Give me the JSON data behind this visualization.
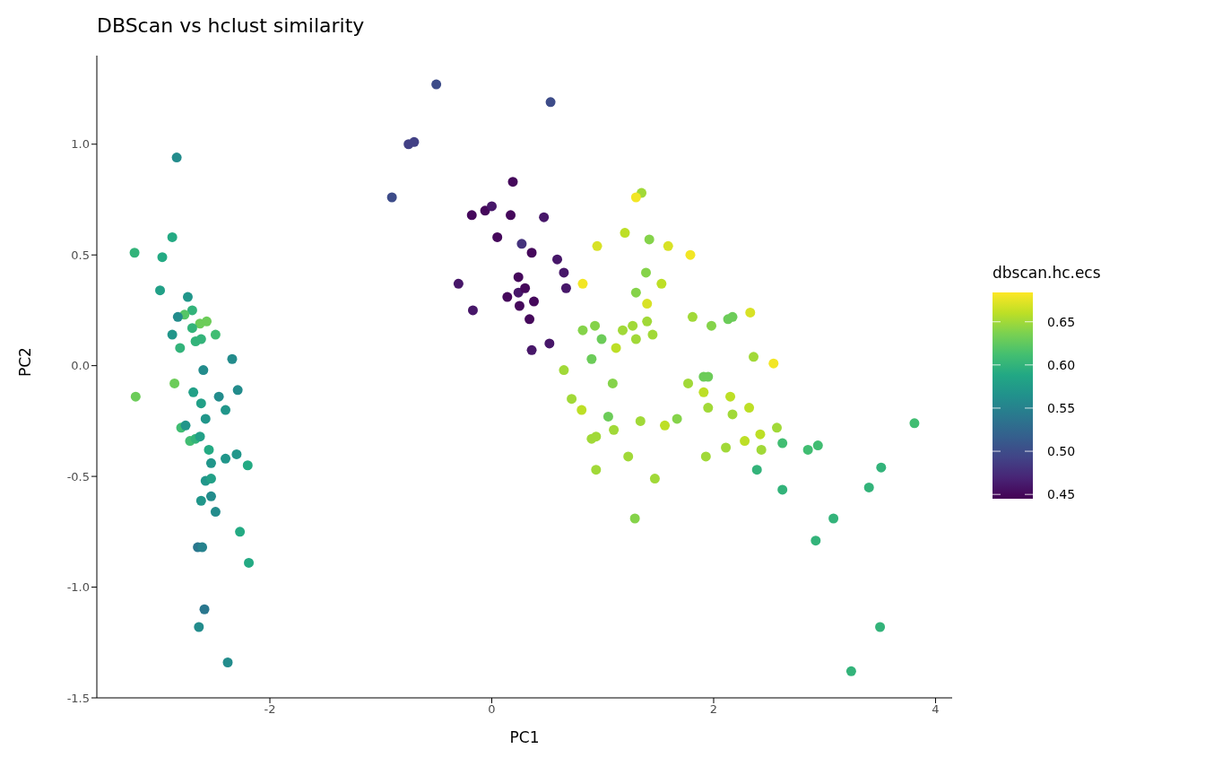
{
  "chart_data": {
    "type": "scatter",
    "title": "DBScan vs hclust similarity",
    "xlabel": "PC1",
    "ylabel": "PC2",
    "legend_title": "dbscan.hc.ecs",
    "marker": "circle",
    "xlim": [
      -3.56,
      4.15
    ],
    "xticks": [
      -2,
      0,
      2,
      4
    ],
    "ylim": [
      -1.5,
      1.4
    ],
    "yticks": [
      -1.5,
      {
        "value": -1,
        "label": "-1.0"
      },
      -0.5,
      {
        "value": 0,
        "label": "0.0"
      },
      0.5,
      {
        "value": 1,
        "label": "1.0"
      }
    ],
    "clim": [
      0.445,
      0.684
    ],
    "cticks": [
      0.45,
      {
        "value": 0.5,
        "label": "0.50"
      },
      0.55,
      {
        "value": 0.6,
        "label": "0.60"
      },
      0.65
    ],
    "x": [
      -2.84,
      -2.88,
      -3.22,
      -2.97,
      -2.99,
      -2.74,
      -2.7,
      -2.77,
      -2.83,
      -2.63,
      -2.57,
      -2.7,
      -2.88,
      -2.49,
      -2.67,
      -2.62,
      -2.81,
      -2.34,
      -2.6,
      -2.86,
      -3.21,
      -2.69,
      -2.29,
      -2.62,
      -2.46,
      -2.4,
      -2.58,
      -2.8,
      -2.76,
      -2.72,
      -2.67,
      -2.63,
      -2.55,
      -2.53,
      -2.4,
      -2.3,
      -2.2,
      -2.58,
      -2.53,
      -2.53,
      -2.62,
      -2.49,
      -2.27,
      -2.65,
      -2.61,
      -2.19,
      -2.59,
      -2.64,
      -2.38,
      -0.5,
      0.53,
      -0.75,
      -0.7,
      -0.9,
      0.19,
      -0.18,
      -0.06,
      0.0,
      0.17,
      0.47,
      0.05,
      0.27,
      0.36,
      0.59,
      0.65,
      0.67,
      0.82,
      0.24,
      -0.3,
      0.24,
      0.3,
      0.14,
      0.38,
      0.25,
      -0.17,
      0.34,
      0.52,
      0.36,
      1.35,
      1.3,
      1.2,
      1.42,
      0.95,
      1.59,
      1.79,
      1.39,
      1.53,
      1.3,
      1.4,
      1.81,
      1.98,
      2.13,
      2.17,
      2.33,
      0.82,
      0.93,
      0.99,
      1.18,
      1.27,
      1.4,
      1.3,
      1.45,
      1.12,
      0.9,
      2.36,
      2.54,
      0.65,
      1.09,
      1.77,
      1.91,
      1.95,
      1.91,
      2.15,
      0.72,
      0.81,
      1.95,
      2.32,
      2.17,
      1.05,
      1.34,
      1.67,
      1.56,
      1.1,
      2.57,
      2.42,
      2.28,
      2.62,
      2.43,
      0.9,
      0.94,
      2.11,
      1.23,
      1.93,
      0.94,
      2.39,
      1.47,
      2.62,
      1.29,
      3.81,
      2.94,
      2.85,
      3.51,
      3.4,
      3.08,
      2.92,
      3.5,
      3.24
    ],
    "values": [
      0.94,
      0.58,
      0.51,
      0.49,
      0.34,
      0.31,
      0.25,
      0.23,
      0.22,
      0.19,
      0.2,
      0.17,
      0.14,
      0.14,
      0.11,
      0.12,
      0.08,
      0.03,
      -0.02,
      -0.08,
      -0.14,
      -0.12,
      -0.11,
      -0.17,
      -0.14,
      -0.2,
      -0.24,
      -0.28,
      -0.27,
      -0.34,
      -0.33,
      -0.32,
      -0.38,
      -0.44,
      -0.42,
      -0.4,
      -0.45,
      -0.52,
      -0.51,
      -0.59,
      -0.61,
      -0.66,
      -0.75,
      -0.82,
      -0.82,
      -0.89,
      -1.1,
      -1.18,
      -1.34,
      1.27,
      1.19,
      1.0,
      1.01,
      0.76,
      0.83,
      0.68,
      0.7,
      0.72,
      0.68,
      0.67,
      0.58,
      0.55,
      0.51,
      0.48,
      0.42,
      0.35,
      0.37,
      0.4,
      0.37,
      0.33,
      0.35,
      0.31,
      0.29,
      0.27,
      0.25,
      0.21,
      0.1,
      0.07,
      0.78,
      0.76,
      0.6,
      0.57,
      0.54,
      0.54,
      0.5,
      0.42,
      0.37,
      0.33,
      0.28,
      0.22,
      0.18,
      0.21,
      0.22,
      0.24,
      0.16,
      0.18,
      0.12,
      0.16,
      0.18,
      0.2,
      0.12,
      0.14,
      0.08,
      0.03,
      0.04,
      0.01,
      -0.02,
      -0.08,
      -0.08,
      -0.05,
      -0.05,
      -0.12,
      -0.14,
      -0.15,
      -0.2,
      -0.19,
      -0.19,
      -0.22,
      -0.23,
      -0.25,
      -0.24,
      -0.27,
      -0.29,
      -0.28,
      -0.31,
      -0.34,
      -0.35,
      -0.38,
      -0.33,
      -0.32,
      -0.37,
      -0.41,
      -0.41,
      -0.47,
      -0.47,
      -0.51,
      -0.56,
      -0.69,
      -0.26,
      -0.36,
      -0.38,
      -0.46,
      -0.55,
      -0.69,
      -0.79,
      -1.18,
      -1.38
    ],
    "cvalues": [
      0.56,
      0.59,
      0.6,
      0.59,
      0.58,
      0.57,
      0.6,
      0.62,
      0.56,
      0.63,
      0.63,
      0.6,
      0.57,
      0.61,
      0.6,
      0.6,
      0.6,
      0.56,
      0.56,
      0.63,
      0.63,
      0.58,
      0.56,
      0.58,
      0.56,
      0.57,
      0.57,
      0.61,
      0.57,
      0.61,
      0.6,
      0.58,
      0.59,
      0.57,
      0.57,
      0.57,
      0.59,
      0.57,
      0.58,
      0.56,
      0.57,
      0.56,
      0.59,
      0.54,
      0.55,
      0.59,
      0.54,
      0.56,
      0.56,
      0.5,
      0.5,
      0.49,
      0.49,
      0.5,
      0.45,
      0.45,
      0.45,
      0.46,
      0.45,
      0.46,
      0.45,
      0.48,
      0.45,
      0.46,
      0.46,
      0.46,
      0.68,
      0.45,
      0.46,
      0.46,
      0.45,
      0.45,
      0.45,
      0.45,
      0.46,
      0.45,
      0.46,
      0.46,
      0.65,
      0.68,
      0.66,
      0.64,
      0.67,
      0.67,
      0.68,
      0.64,
      0.66,
      0.64,
      0.67,
      0.65,
      0.64,
      0.63,
      0.63,
      0.67,
      0.64,
      0.64,
      0.63,
      0.65,
      0.65,
      0.65,
      0.65,
      0.65,
      0.66,
      0.63,
      0.65,
      0.68,
      0.65,
      0.64,
      0.65,
      0.63,
      0.63,
      0.66,
      0.66,
      0.65,
      0.66,
      0.65,
      0.66,
      0.65,
      0.63,
      0.65,
      0.64,
      0.66,
      0.65,
      0.65,
      0.66,
      0.66,
      0.61,
      0.65,
      0.65,
      0.65,
      0.65,
      0.65,
      0.65,
      0.65,
      0.6,
      0.65,
      0.6,
      0.64,
      0.61,
      0.61,
      0.61,
      0.6,
      0.6,
      0.6,
      0.6,
      0.6,
      0.6
    ]
  }
}
